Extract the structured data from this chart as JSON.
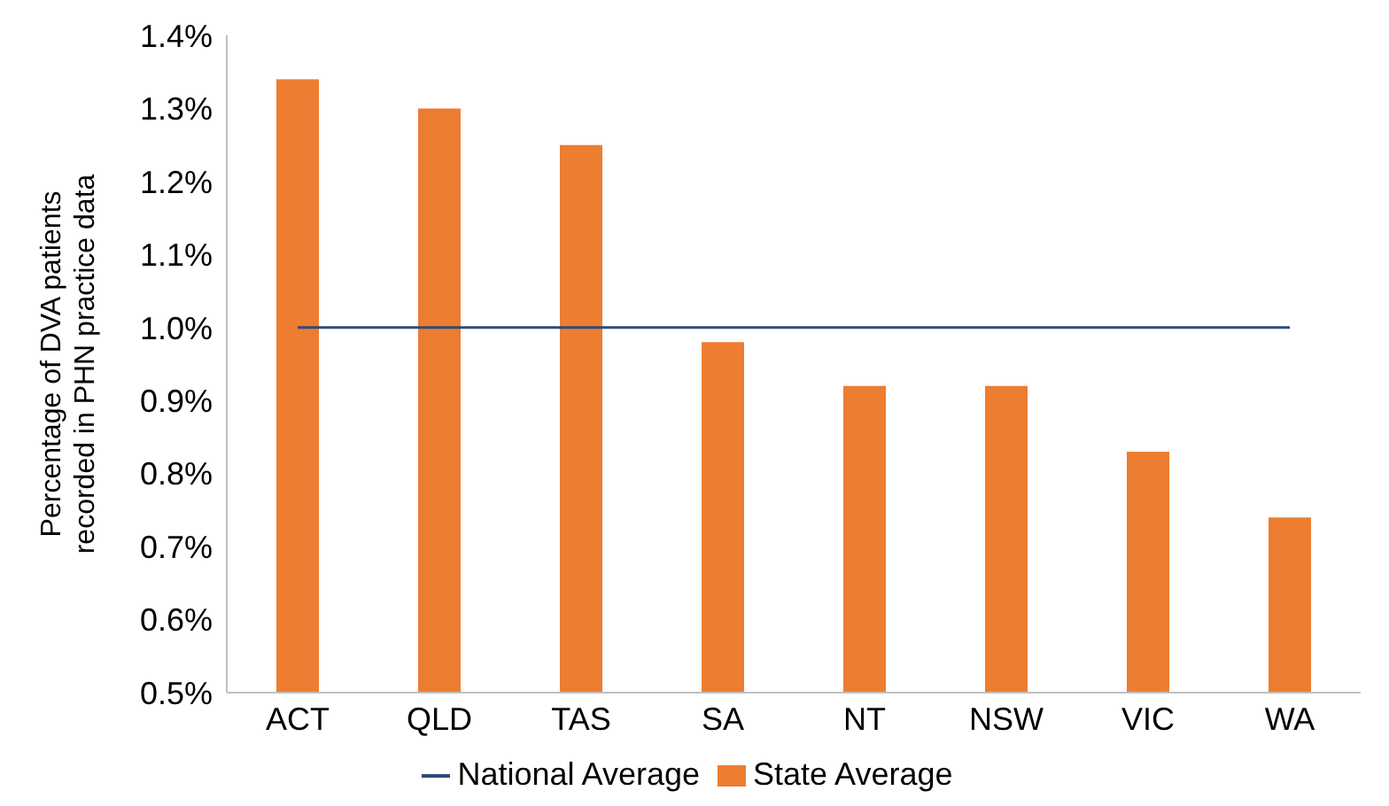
{
  "chart_data": {
    "type": "bar",
    "ylabel": "Percentage of DVA patients recorded in PHN practice data",
    "categories": [
      "ACT",
      "QLD",
      "TAS",
      "SA",
      "NT",
      "NSW",
      "VIC",
      "WA"
    ],
    "series": [
      {
        "name": "State Average",
        "color": "#ed7d31",
        "values": [
          1.34,
          1.3,
          1.25,
          0.98,
          0.92,
          0.92,
          0.83,
          0.74
        ]
      },
      {
        "name": "National Average",
        "type": "line",
        "color": "#2f4b7c",
        "values": [
          1.0,
          1.0,
          1.0,
          1.0,
          1.0,
          1.0,
          1.0,
          1.0
        ]
      }
    ],
    "ylim": [
      0.5,
      1.4
    ],
    "yticks": [
      {
        "value": 0.5,
        "label": "0.5%"
      },
      {
        "value": 0.6,
        "label": "0.6%"
      },
      {
        "value": 0.7,
        "label": "0.7%"
      },
      {
        "value": 0.8,
        "label": "0.8%"
      },
      {
        "value": 0.9,
        "label": "0.9%"
      },
      {
        "value": 1.0,
        "label": "1.0%"
      },
      {
        "value": 1.1,
        "label": "1.1%"
      },
      {
        "value": 1.2,
        "label": "1.2%"
      },
      {
        "value": 1.3,
        "label": "1.3%"
      },
      {
        "value": 1.4,
        "label": "1.4%"
      }
    ],
    "legend": "bottom"
  }
}
